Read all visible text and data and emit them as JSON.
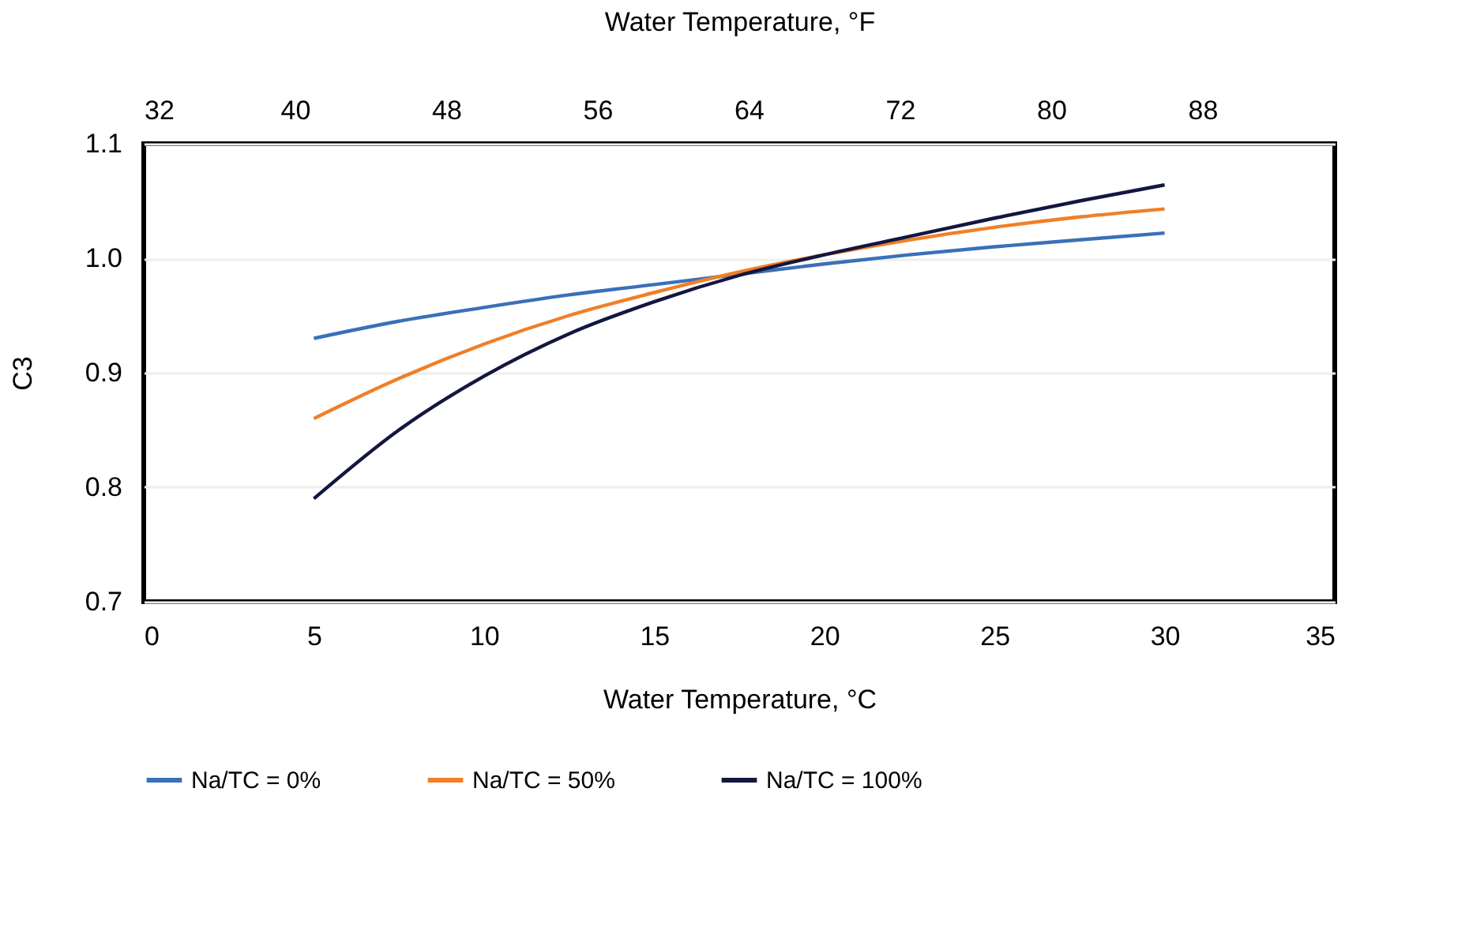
{
  "chart_data": {
    "type": "line",
    "x": [
      5,
      7.5,
      10,
      12.5,
      15,
      17.5,
      20,
      22.5,
      25,
      27.5,
      30
    ],
    "series": [
      {
        "name": "Na/TC = 0%",
        "color": "#3a70b8",
        "values": [
          0.93,
          0.945,
          0.957,
          0.968,
          0.977,
          0.986,
          0.995,
          1.003,
          1.01,
          1.016,
          1.022
        ]
      },
      {
        "name": "Na/TC = 50%",
        "color": "#f07f27",
        "values": [
          0.86,
          0.895,
          0.925,
          0.95,
          0.97,
          0.988,
          1.003,
          1.016,
          1.027,
          1.036,
          1.043
        ]
      },
      {
        "name": "Na/TC = 100%",
        "color": "#13163f",
        "values": [
          0.79,
          0.85,
          0.897,
          0.934,
          0.962,
          0.985,
          1.003,
          1.019,
          1.035,
          1.05,
          1.064
        ]
      }
    ],
    "xlabel": "Water Temperature, °C",
    "ylabel": "C3",
    "x2label": "Water Temperature, °F",
    "xlim": [
      0,
      35
    ],
    "xticks": [
      0,
      5,
      10,
      15,
      20,
      25,
      30,
      35
    ],
    "x2lim": [
      32,
      95
    ],
    "x2ticks": [
      32,
      40,
      48,
      56,
      64,
      72,
      80,
      88
    ],
    "ylim": [
      0.7,
      1.1
    ],
    "yticks": [
      {
        "value": 0.7,
        "label": "0.7"
      },
      {
        "value": 0.8,
        "label": "0.8"
      },
      {
        "value": 0.9,
        "label": "0.9"
      },
      {
        "value": 1.0,
        "label": "1.0"
      },
      {
        "value": 1.1,
        "label": "1.1"
      }
    ],
    "grid": "y",
    "legend": "bottom",
    "marker": "none",
    "line_style": "solid"
  }
}
